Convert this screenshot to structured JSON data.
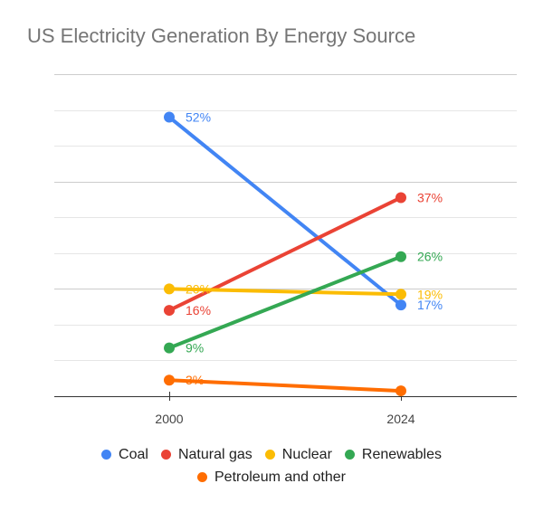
{
  "chart_data": {
    "type": "line",
    "title": "US Electricity Generation By Energy Source",
    "xlabel": "",
    "ylabel": "",
    "x": [
      "2000",
      "2024"
    ],
    "ylim": [
      0,
      60
    ],
    "grid": true,
    "legend_position": "bottom",
    "series": [
      {
        "name": "Coal",
        "color": "#4285F4",
        "values": [
          52,
          17
        ],
        "labels": [
          "52%",
          "17%"
        ]
      },
      {
        "name": "Natural gas",
        "color": "#EA4335",
        "values": [
          16,
          37
        ],
        "labels": [
          "16%",
          "37%"
        ]
      },
      {
        "name": "Nuclear",
        "color": "#FBBC04",
        "values": [
          20,
          19
        ],
        "labels": [
          "20%",
          "19%"
        ]
      },
      {
        "name": "Renewables",
        "color": "#34A853",
        "values": [
          9,
          26
        ],
        "labels": [
          "9%",
          "26%"
        ]
      },
      {
        "name": "Petroleum and other",
        "color": "#FF6D01",
        "values": [
          3,
          1
        ],
        "labels": [
          "3%",
          ""
        ]
      }
    ]
  },
  "legend": {
    "rows": [
      [
        0,
        1,
        2,
        3
      ],
      [
        4
      ]
    ]
  }
}
